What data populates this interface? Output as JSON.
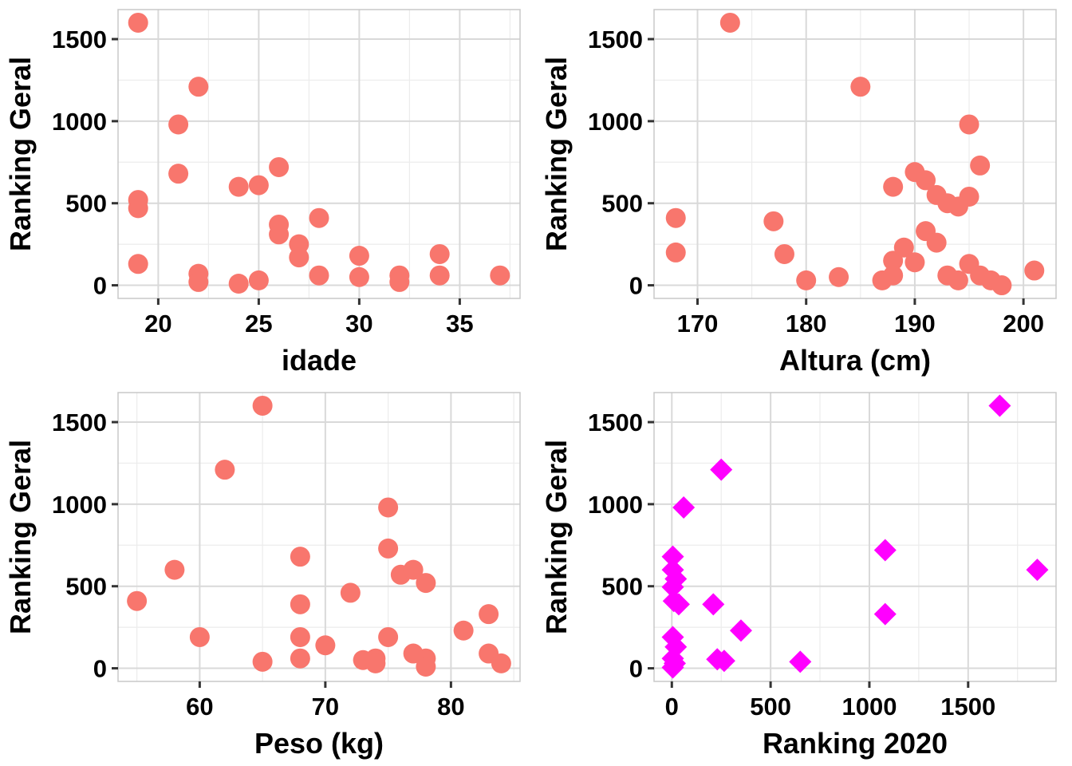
{
  "figure": {
    "description": "2x2 scatter plot matrix of Ranking Geral vs idade, Altura, Peso, Ranking 2020"
  },
  "style": {
    "panel_bg": "#ffffff",
    "panel_border": "#c8c8c8",
    "grid_major": "#d9d9d9",
    "grid_minor": "#ececec",
    "tick": "#333333",
    "text": "#000000",
    "salmon": "#F8766D",
    "magenta": "#FF00FF"
  },
  "chart_data": [
    {
      "type": "scatter",
      "title": "",
      "xlabel": "idade",
      "ylabel": "Ranking Geral",
      "marker": "circle",
      "color": "#F8766D",
      "xlim": [
        18,
        38
      ],
      "ylim": [
        -80,
        1680
      ],
      "xticks": [
        20,
        25,
        30,
        35
      ],
      "yticks": [
        0,
        500,
        1000,
        1500
      ],
      "grid": true,
      "legend": "none",
      "points": [
        [
          19,
          1600
        ],
        [
          19,
          520
        ],
        [
          19,
          470
        ],
        [
          19,
          130
        ],
        [
          21,
          980
        ],
        [
          21,
          680
        ],
        [
          22,
          1210
        ],
        [
          22,
          70
        ],
        [
          22,
          20
        ],
        [
          24,
          600
        ],
        [
          24,
          10
        ],
        [
          25,
          610
        ],
        [
          25,
          30
        ],
        [
          26,
          720
        ],
        [
          26,
          370
        ],
        [
          26,
          310
        ],
        [
          27,
          250
        ],
        [
          27,
          170
        ],
        [
          28,
          410
        ],
        [
          28,
          60
        ],
        [
          30,
          180
        ],
        [
          30,
          50
        ],
        [
          32,
          60
        ],
        [
          32,
          20
        ],
        [
          34,
          190
        ],
        [
          34,
          60
        ],
        [
          37,
          60
        ]
      ]
    },
    {
      "type": "scatter",
      "title": "",
      "xlabel": "Altura (cm)",
      "ylabel": "Ranking Geral",
      "marker": "circle",
      "color": "#F8766D",
      "xlim": [
        166,
        203
      ],
      "ylim": [
        -80,
        1680
      ],
      "xticks": [
        170,
        180,
        190,
        200
      ],
      "yticks": [
        0,
        500,
        1000,
        1500
      ],
      "grid": true,
      "legend": "none",
      "points": [
        [
          168,
          410
        ],
        [
          168,
          200
        ],
        [
          173,
          1600
        ],
        [
          177,
          390
        ],
        [
          178,
          190
        ],
        [
          180,
          30
        ],
        [
          183,
          50
        ],
        [
          185,
          1210
        ],
        [
          187,
          30
        ],
        [
          188,
          600
        ],
        [
          188,
          150
        ],
        [
          188,
          60
        ],
        [
          189,
          230
        ],
        [
          190,
          690
        ],
        [
          190,
          140
        ],
        [
          191,
          640
        ],
        [
          191,
          330
        ],
        [
          192,
          550
        ],
        [
          192,
          260
        ],
        [
          193,
          500
        ],
        [
          193,
          60
        ],
        [
          194,
          480
        ],
        [
          194,
          30
        ],
        [
          195,
          980
        ],
        [
          195,
          540
        ],
        [
          195,
          130
        ],
        [
          196,
          730
        ],
        [
          196,
          60
        ],
        [
          197,
          30
        ],
        [
          198,
          0
        ],
        [
          201,
          90
        ]
      ]
    },
    {
      "type": "scatter",
      "title": "",
      "xlabel": "Peso (kg)",
      "ylabel": "Ranking Geral",
      "marker": "circle",
      "color": "#F8766D",
      "xlim": [
        53.5,
        85.5
      ],
      "ylim": [
        -80,
        1680
      ],
      "xticks": [
        60,
        70,
        80
      ],
      "yticks": [
        0,
        500,
        1000,
        1500
      ],
      "grid": true,
      "legend": "none",
      "points": [
        [
          55,
          410
        ],
        [
          58,
          600
        ],
        [
          60,
          190
        ],
        [
          62,
          1210
        ],
        [
          65,
          1600
        ],
        [
          65,
          40
        ],
        [
          68,
          680
        ],
        [
          68,
          390
        ],
        [
          68,
          190
        ],
        [
          68,
          60
        ],
        [
          70,
          140
        ],
        [
          72,
          460
        ],
        [
          73,
          50
        ],
        [
          74,
          60
        ],
        [
          74,
          30
        ],
        [
          75,
          980
        ],
        [
          75,
          730
        ],
        [
          75,
          190
        ],
        [
          76,
          570
        ],
        [
          77,
          600
        ],
        [
          77,
          90
        ],
        [
          78,
          520
        ],
        [
          78,
          60
        ],
        [
          78,
          10
        ],
        [
          81,
          230
        ],
        [
          83,
          330
        ],
        [
          83,
          90
        ],
        [
          84,
          30
        ]
      ]
    },
    {
      "type": "scatter",
      "title": "",
      "xlabel": "Ranking 2020",
      "ylabel": "Ranking Geral",
      "marker": "diamond",
      "color": "#FF00FF",
      "xlim": [
        -90,
        1945
      ],
      "ylim": [
        -80,
        1680
      ],
      "xticks": [
        0,
        500,
        1000,
        1500
      ],
      "yticks": [
        0,
        500,
        1000,
        1500
      ],
      "grid": true,
      "legend": "none",
      "points": [
        [
          5,
          680
        ],
        [
          5,
          600
        ],
        [
          20,
          545
        ],
        [
          5,
          495
        ],
        [
          10,
          410
        ],
        [
          35,
          390
        ],
        [
          60,
          980
        ],
        [
          5,
          190
        ],
        [
          20,
          130
        ],
        [
          5,
          60
        ],
        [
          15,
          30
        ],
        [
          5,
          5
        ],
        [
          210,
          390
        ],
        [
          250,
          1210
        ],
        [
          230,
          55
        ],
        [
          265,
          45
        ],
        [
          350,
          230
        ],
        [
          650,
          40
        ],
        [
          1080,
          720
        ],
        [
          1080,
          330
        ],
        [
          1660,
          1600
        ],
        [
          1850,
          600
        ]
      ]
    }
  ]
}
